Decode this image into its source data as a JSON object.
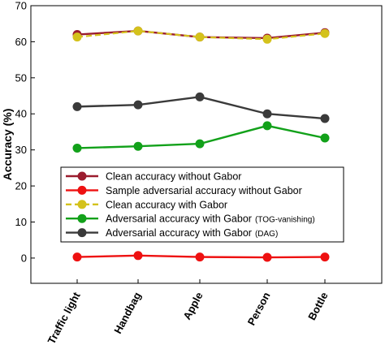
{
  "chart_data": {
    "type": "line",
    "ylabel": "Accuracy (%)",
    "xlabel": "",
    "ylim": [
      -7,
      70
    ],
    "yticks": [
      0,
      10,
      20,
      30,
      40,
      50,
      60,
      70
    ],
    "categories": [
      "Traffic light",
      "Handbag",
      "Apple",
      "Person",
      "Bottle"
    ],
    "grid": false,
    "legend_position": "center-left",
    "series": [
      {
        "name": "Clean accuracy without Gabor",
        "name_suffix": "",
        "color": "#9b1c2e",
        "line_style": "solid",
        "values": [
          62.0,
          63.0,
          61.3,
          61.0,
          62.5
        ]
      },
      {
        "name": "Sample adversarial accuracy without Gabor",
        "name_suffix": "",
        "color": "#ee1111",
        "line_style": "solid",
        "values": [
          0.3,
          0.7,
          0.3,
          0.2,
          0.3
        ]
      },
      {
        "name": "Clean accuracy with Gabor",
        "name_suffix": "",
        "color": "#d4c21c",
        "line_style": "dashed",
        "values": [
          61.3,
          63.0,
          61.3,
          60.7,
          62.3
        ]
      },
      {
        "name": "Adversarial accuracy with Gabor",
        "name_suffix": "(TOG-vanishing)",
        "color": "#12a11a",
        "line_style": "solid",
        "values": [
          30.5,
          31.0,
          31.7,
          36.7,
          33.3
        ]
      },
      {
        "name": "Adversarial accuracy with Gabor",
        "name_suffix": "(DAG)",
        "color": "#3a3a3a",
        "line_style": "solid",
        "values": [
          42.0,
          42.5,
          44.7,
          40.0,
          38.7
        ]
      }
    ]
  }
}
